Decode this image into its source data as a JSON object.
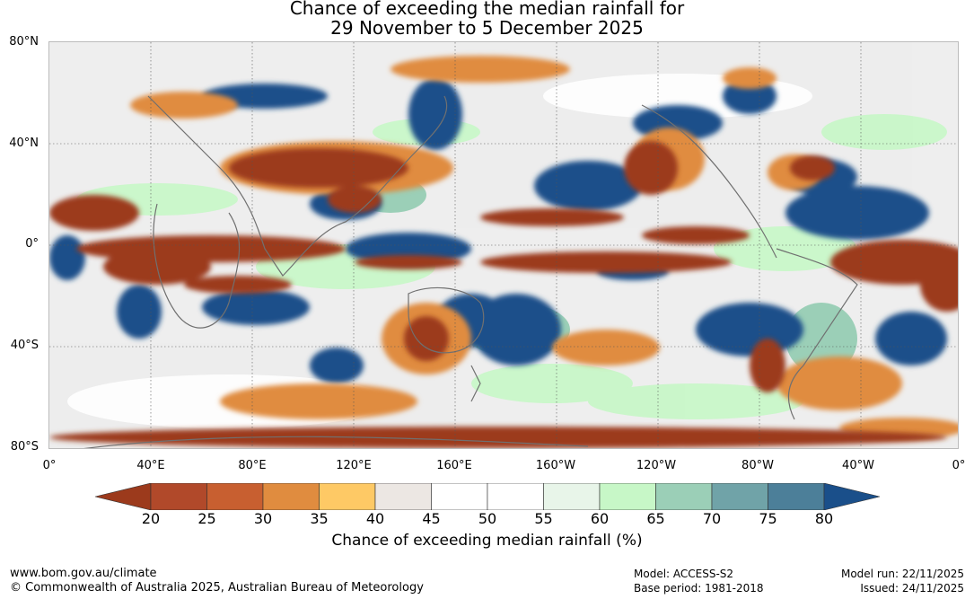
{
  "title": {
    "line1": "Chance of exceeding the median rainfall for",
    "line2": "29 November to 5 December 2025"
  },
  "map": {
    "lat_labels": [
      "80°N",
      "40°N",
      "0°",
      "40°S",
      "80°S"
    ],
    "lon_labels": [
      "0°",
      "40°E",
      "80°E",
      "120°E",
      "160°E",
      "160°W",
      "120°W",
      "80°W",
      "40°W",
      "0°"
    ],
    "features": [
      "world coastlines (grey)",
      "lat/lon gridlines (dotted)",
      "probability shading"
    ]
  },
  "colorbar": {
    "label": "Chance of exceeding median rainfall (%)",
    "ticks": [
      "20",
      "25",
      "30",
      "35",
      "40",
      "45",
      "50",
      "55",
      "60",
      "65",
      "70",
      "75",
      "80"
    ],
    "colors": [
      "#9c3a1c",
      "#b1492a",
      "#c85f30",
      "#e08c3f",
      "#fec965",
      "#ece7e3",
      "#ffffff",
      "#ffffff",
      "#e8f5e9",
      "#c7f7c7",
      "#9bcfb7",
      "#70a3a8",
      "#4c7f99",
      "#1a4f8a"
    ]
  },
  "footer": {
    "url": "www.bom.gov.au/climate",
    "copyright": "© Commonwealth of Australia 2025, Australian Bureau of Meteorology",
    "model": "Model: ACCESS-S2",
    "base_period": "Base period: 1981-2018",
    "model_run": "Model run: 22/11/2025",
    "issued": "Issued: 24/11/2025"
  }
}
